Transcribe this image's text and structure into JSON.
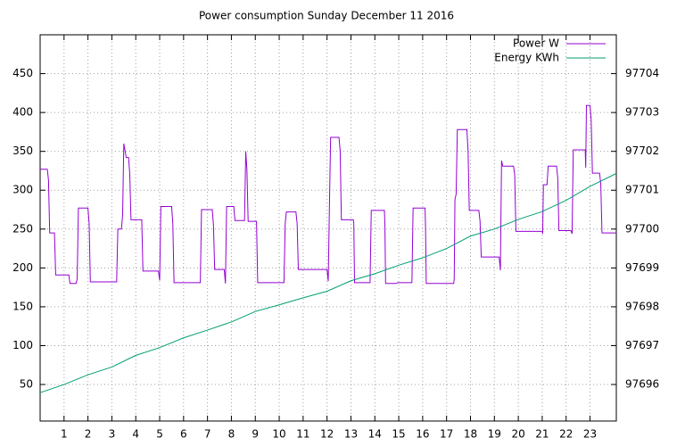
{
  "chart_data": {
    "type": "line",
    "title": "Power consumption Sunday December 11 2016",
    "xlim": [
      0,
      24.1
    ],
    "ylim": [
      3,
      500
    ],
    "y2lim": [
      97695.06,
      97705.0
    ],
    "xticks": [
      1,
      2,
      3,
      4,
      5,
      6,
      7,
      8,
      9,
      10,
      11,
      12,
      13,
      14,
      15,
      16,
      17,
      18,
      19,
      20,
      21,
      22,
      23
    ],
    "yticks": [
      50,
      100,
      150,
      200,
      250,
      300,
      350,
      400,
      450
    ],
    "y2ticks": [
      97696,
      97697,
      97698,
      97699,
      97700,
      97701,
      97702,
      97703,
      97704
    ],
    "grid": true,
    "legend": "top-right",
    "series": [
      {
        "name": "Power W",
        "color": "#9400d3",
        "x": [
          0,
          0.3,
          0.35,
          0.4,
          0.6,
          0.65,
          1.2,
          1.25,
          1.5,
          1.55,
          1.6,
          2.0,
          2.05,
          2.1,
          3.2,
          3.25,
          3.4,
          3.45,
          3.5,
          3.6,
          3.7,
          3.75,
          3.8,
          4.25,
          4.3,
          4.95,
          5.0,
          5.05,
          5.5,
          5.55,
          5.6,
          6.7,
          6.75,
          7.2,
          7.25,
          7.3,
          7.7,
          7.75,
          7.8,
          8.1,
          8.15,
          8.55,
          8.6,
          8.65,
          8.7,
          9.05,
          9.1,
          10.2,
          10.25,
          10.3,
          10.7,
          10.75,
          10.8,
          12.0,
          12.05,
          12.1,
          12.15,
          12.5,
          12.55,
          12.6,
          13.1,
          13.12,
          13.15,
          13.8,
          13.85,
          14.4,
          14.42,
          14.45,
          14.9,
          14.95,
          15.55,
          15.6,
          16.1,
          16.12,
          16.15,
          17.3,
          17.32,
          17.35,
          17.4,
          17.45,
          17.85,
          17.9,
          17.95,
          18.35,
          18.4,
          18.45,
          19.2,
          19.25,
          19.3,
          19.35,
          19.8,
          19.85,
          19.9,
          21.0,
          21.02,
          21.05,
          21.2,
          21.25,
          21.6,
          21.65,
          21.7,
          22.2,
          22.25,
          22.3,
          22.8,
          22.82,
          22.85,
          23.0,
          23.05,
          23.1,
          23.4,
          23.45,
          23.5,
          24.1
        ],
        "values": [
          327,
          327,
          313,
          245,
          245,
          191,
          191,
          180,
          180,
          186,
          277,
          277,
          257,
          182,
          182,
          250,
          250,
          268,
          360,
          342,
          342,
          320,
          262,
          262,
          196,
          196,
          184,
          279,
          279,
          257,
          181,
          181,
          275,
          275,
          255,
          198,
          198,
          180,
          279,
          279,
          261,
          261,
          350,
          326,
          260,
          260,
          181,
          181,
          257,
          272,
          272,
          257,
          198,
          198,
          183,
          279,
          368,
          368,
          350,
          262,
          262,
          257,
          181,
          181,
          274,
          274,
          257,
          180,
          180,
          181,
          181,
          277,
          277,
          252,
          180,
          180,
          186,
          288,
          295,
          378,
          378,
          350,
          274,
          274,
          260,
          214,
          214,
          197,
          338,
          331,
          331,
          320,
          247,
          247,
          244,
          307,
          307,
          331,
          331,
          316,
          248,
          248,
          244,
          352,
          352,
          329,
          409,
          409,
          390,
          322,
          322,
          308,
          245,
          245
        ]
      },
      {
        "name": "Energy KWh",
        "color": "#009e73",
        "axis": "y2",
        "x": [
          0,
          1,
          2,
          3,
          4,
          5,
          6,
          7,
          8,
          9,
          10,
          11,
          12,
          13,
          14,
          15,
          16,
          17,
          18,
          19,
          20,
          21,
          22,
          23,
          24.1
        ],
        "values": [
          97695.79,
          97696.0,
          97696.25,
          97696.45,
          97696.75,
          97696.95,
          97697.2,
          97697.4,
          97697.61,
          97697.88,
          97698.05,
          97698.23,
          97698.4,
          97698.67,
          97698.85,
          97699.07,
          97699.26,
          97699.5,
          97699.82,
          97700.0,
          97700.25,
          97700.45,
          97700.74,
          97701.1,
          97701.43
        ]
      }
    ]
  }
}
